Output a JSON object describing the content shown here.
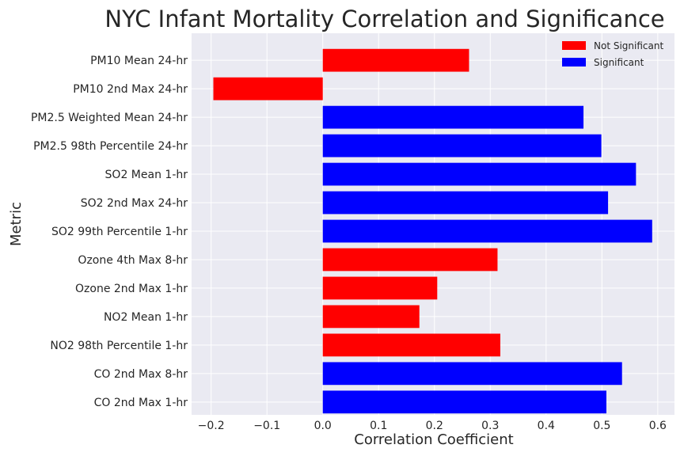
{
  "chart_data": {
    "type": "bar",
    "orientation": "horizontal",
    "title": "NYC Infant Mortality Correlation and Significance",
    "xlabel": "Correlation Coefficient",
    "ylabel": "Metric",
    "xlim": [
      -0.235,
      0.63
    ],
    "xticks": [
      -0.2,
      -0.1,
      0.0,
      0.1,
      0.2,
      0.3,
      0.4,
      0.5,
      0.6
    ],
    "xtick_labels": [
      "−0.2",
      "−0.1",
      "0.0",
      "0.1",
      "0.2",
      "0.3",
      "0.4",
      "0.5",
      "0.6"
    ],
    "grid": true,
    "legend_position": "top-right",
    "colors": {
      "Not Significant": "#ff0000",
      "Significant": "#0000ff"
    },
    "legend": [
      "Not Significant",
      "Significant"
    ],
    "categories": [
      "PM10 Mean 24-hr",
      "PM10 2nd Max 24-hr",
      "PM2.5 Weighted Mean 24-hr",
      "PM2.5 98th Percentile 24-hr",
      "SO2 Mean 1-hr",
      "SO2 2nd Max 24-hr",
      "SO2 99th Percentile 1-hr",
      "Ozone 4th Max 8-hr",
      "Ozone 2nd Max 1-hr",
      "NO2 Mean 1-hr",
      "NO2 98th Percentile 1-hr",
      "CO 2nd Max 8-hr",
      "CO 2nd Max 1-hr"
    ],
    "values": [
      0.262,
      -0.196,
      0.467,
      0.499,
      0.561,
      0.511,
      0.59,
      0.313,
      0.205,
      0.173,
      0.318,
      0.536,
      0.508
    ],
    "significance": [
      "Not Significant",
      "Not Significant",
      "Significant",
      "Significant",
      "Significant",
      "Significant",
      "Significant",
      "Not Significant",
      "Not Significant",
      "Not Significant",
      "Not Significant",
      "Significant",
      "Significant"
    ]
  }
}
